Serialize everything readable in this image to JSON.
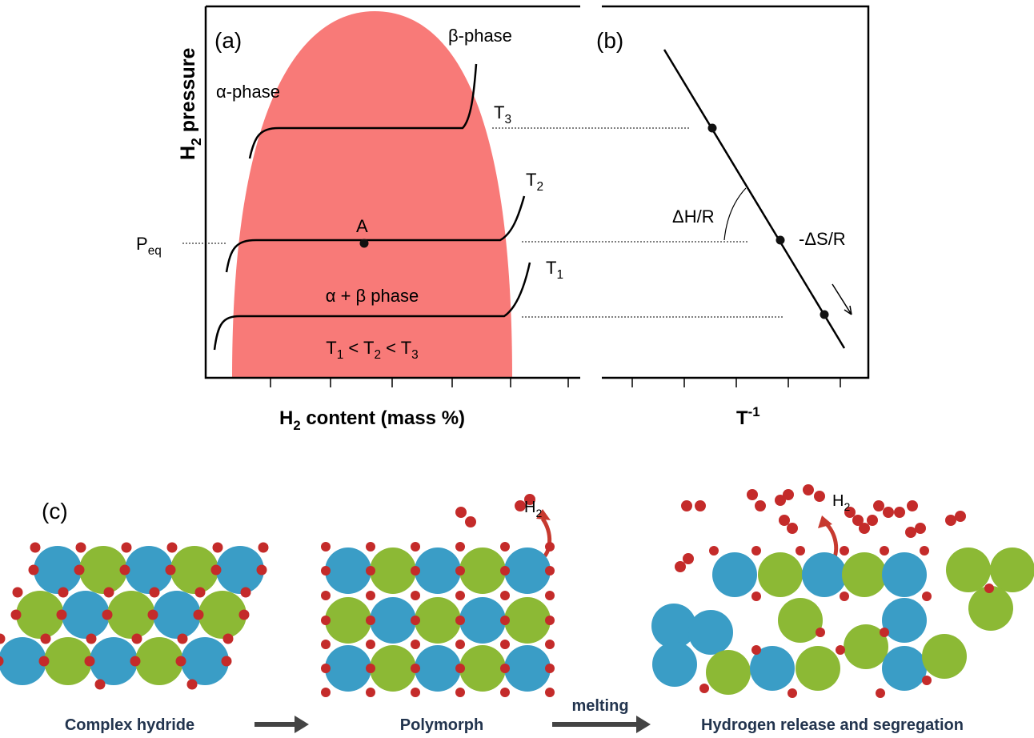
{
  "panel_a": {
    "label": "(a)",
    "y_axis_label": [
      "H",
      "2",
      " pressure"
    ],
    "x_axis_label": [
      "H",
      "2",
      " content (mass %)"
    ],
    "beta_phase": "β-phase",
    "alpha_phase": "α-phase",
    "isotherms": [
      [
        "T",
        "3"
      ],
      [
        "T",
        "2"
      ],
      [
        "T",
        "1"
      ]
    ],
    "point": "A",
    "p_eq": [
      "P",
      "eq"
    ],
    "two_phase": "α + β phase",
    "order": [
      "T",
      "1",
      " < ",
      "T",
      "2",
      " < ",
      "T",
      "3"
    ]
  },
  "panel_b": {
    "label": "(b)",
    "slope": "ΔH/R",
    "intercept": "-ΔS/R",
    "x_axis_label": [
      "T",
      "-1"
    ]
  },
  "panel_c": {
    "label": "(c)",
    "h2_labels": [
      [
        "H",
        "2"
      ],
      [
        "H",
        "2"
      ]
    ],
    "captions": [
      "Complex hydride",
      "Polymorph",
      "Hydrogen release and segregation"
    ],
    "arrow_label": "melting"
  }
}
